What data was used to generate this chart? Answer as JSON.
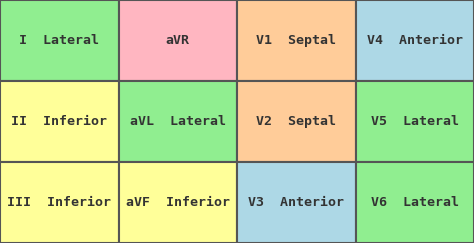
{
  "grid": [
    [
      {
        "text": "I  Lateral",
        "color": "#90EE90"
      },
      {
        "text": "aVR",
        "color": "#FFB6C1"
      },
      {
        "text": "V1  Septal",
        "color": "#FFCC99"
      },
      {
        "text": "V4  Anterior",
        "color": "#ADD8E6"
      }
    ],
    [
      {
        "text": "II  Inferior",
        "color": "#FFFF99"
      },
      {
        "text": "aVL  Lateral",
        "color": "#90EE90"
      },
      {
        "text": "V2  Septal",
        "color": "#FFCC99"
      },
      {
        "text": "V5  Lateral",
        "color": "#90EE90"
      }
    ],
    [
      {
        "text": "III  Inferior",
        "color": "#FFFF99"
      },
      {
        "text": "aVF  Inferior",
        "color": "#FFFF99"
      },
      {
        "text": "V3  Anterior",
        "color": "#ADD8E6"
      },
      {
        "text": "V6  Lateral",
        "color": "#90EE90"
      }
    ]
  ],
  "ncols": 4,
  "nrows": 3,
  "border_color": "#555555",
  "text_color": "#333333",
  "font_size": 9.5,
  "font_family": "monospace",
  "fig_width": 4.74,
  "fig_height": 2.43,
  "dpi": 100
}
